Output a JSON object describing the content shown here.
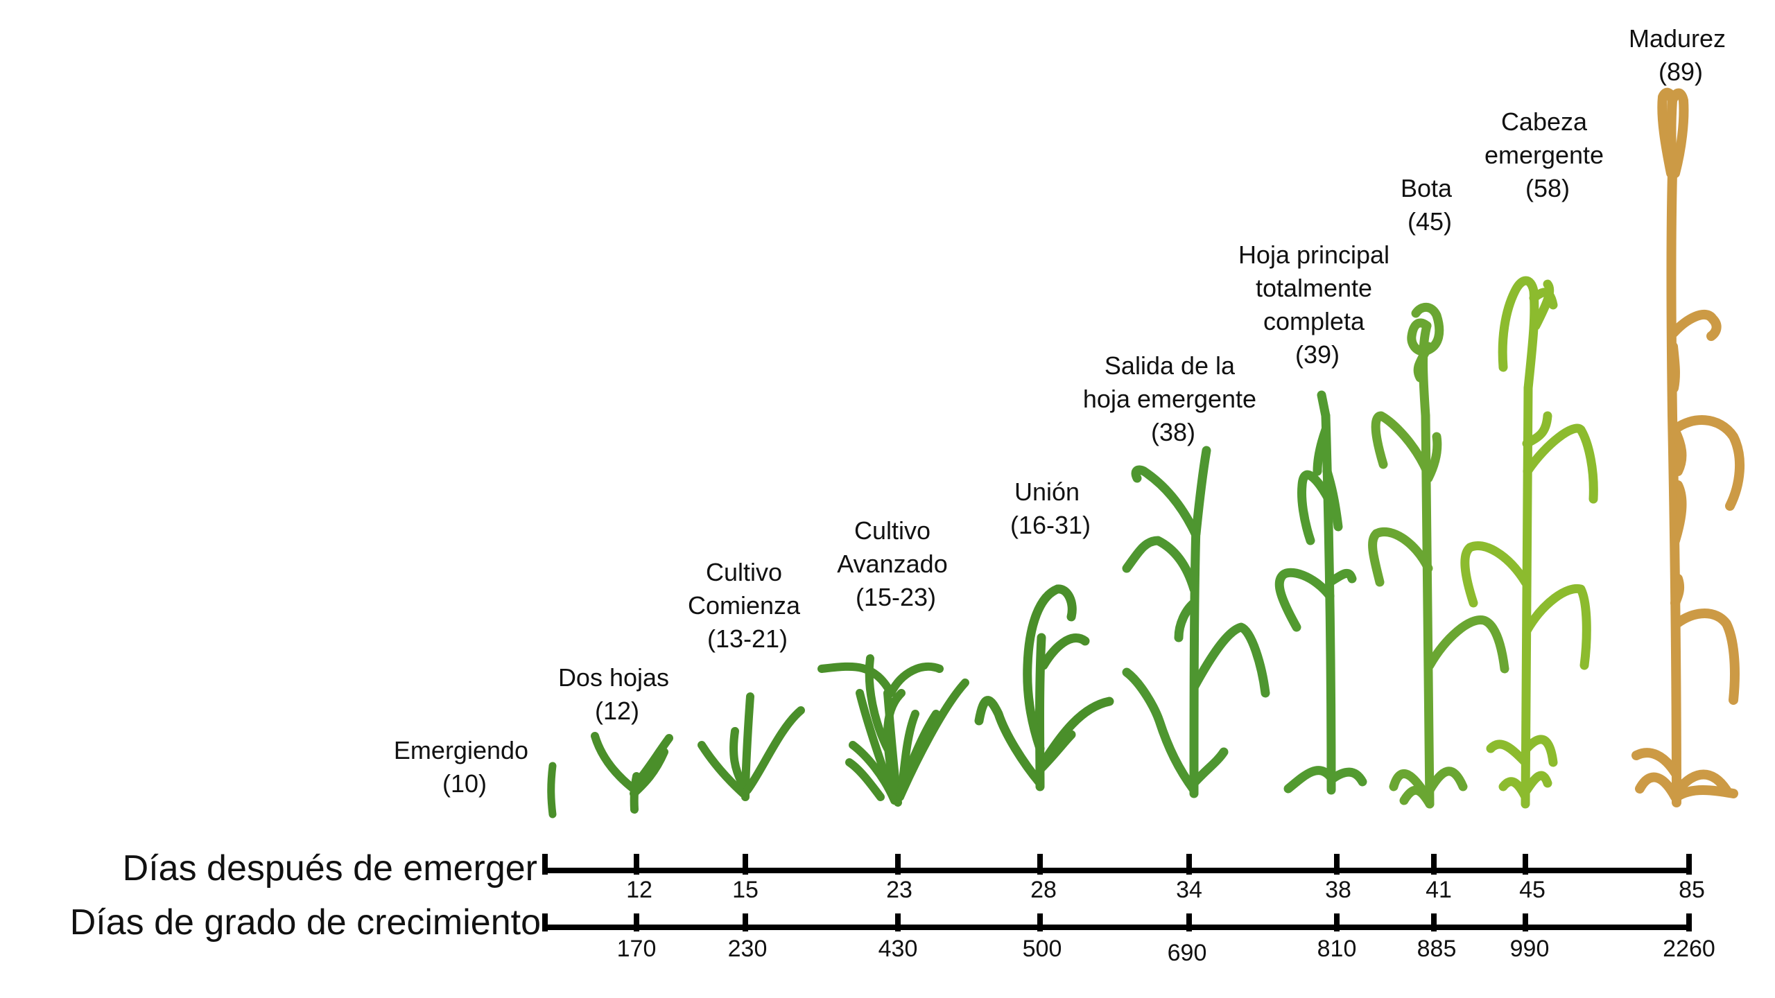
{
  "stages": [
    {
      "id": "emergiendo",
      "label_lines": [
        "Emergiendo",
        "(10)"
      ],
      "color": "#4a8f2a"
    },
    {
      "id": "dos-hojas",
      "label_lines": [
        "Dos hojas",
        "(12)"
      ],
      "color": "#4a8f2a"
    },
    {
      "id": "cultivo-comienza",
      "label_lines": [
        "Cultivo",
        "Comienza",
        "(13-21)"
      ],
      "color": "#4a8f2a"
    },
    {
      "id": "cultivo-avanzado",
      "label_lines": [
        "Cultivo",
        "Avanzado",
        "(15-23)"
      ],
      "color": "#4a8f2a"
    },
    {
      "id": "union",
      "label_lines": [
        "Unión",
        "(16-31)"
      ],
      "color": "#4a8f2a"
    },
    {
      "id": "salida-hoja",
      "label_lines": [
        "Salida de la",
        "hoja emergente",
        "(38)"
      ],
      "color": "#4e9630"
    },
    {
      "id": "hoja-principal",
      "label_lines": [
        "Hoja principal",
        "totalmente",
        "completa",
        "(39)"
      ],
      "color": "#529a30"
    },
    {
      "id": "bota",
      "label_lines": [
        "Bota",
        "(45)"
      ],
      "color": "#6aa632"
    },
    {
      "id": "cabeza-emergente",
      "label_lines": [
        "Cabeza",
        "emergente",
        "(58)"
      ],
      "color": "#8cbb2e"
    },
    {
      "id": "madurez",
      "label_lines": [
        "Madurez",
        "(89)"
      ],
      "color": "#cc9a45"
    }
  ],
  "axes": {
    "days_after_emergence": {
      "title": "Días después de emerger",
      "ticks": [
        "12",
        "15",
        "23",
        "28",
        "34",
        "38",
        "41",
        "45",
        "85"
      ]
    },
    "growing_degree_days": {
      "title": "Días de grado de crecimiento",
      "ticks": [
        "170",
        "230",
        "430",
        "500",
        "690",
        "810",
        "885",
        "990",
        "2260"
      ]
    }
  }
}
